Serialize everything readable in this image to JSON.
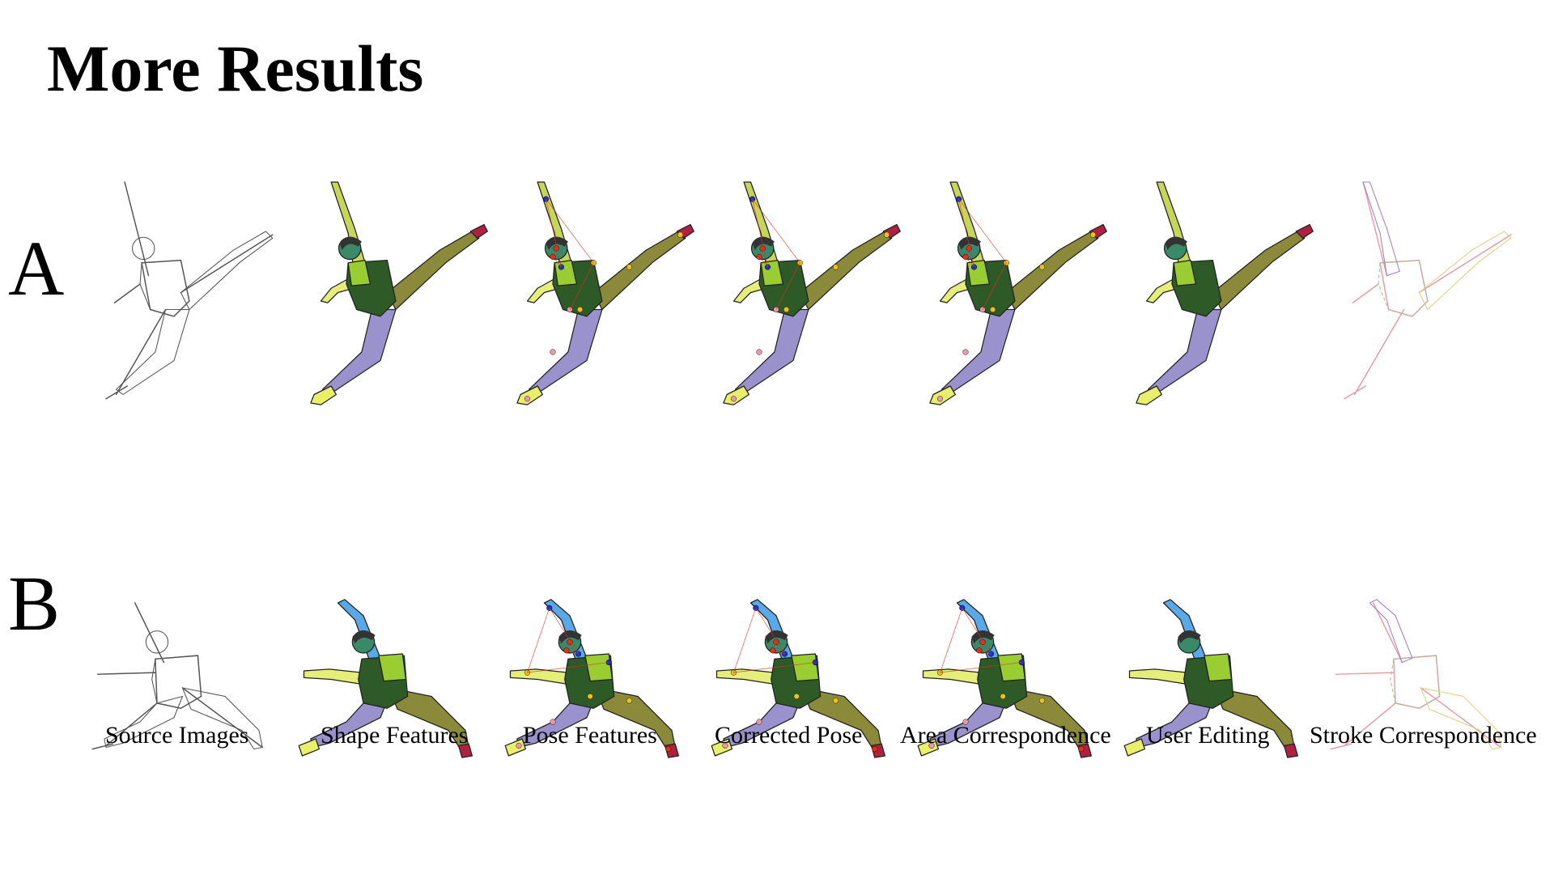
{
  "title": "More Results",
  "rows": [
    "A",
    "B"
  ],
  "captions": [
    "Source Images",
    "Shape Features",
    "Pose Features",
    "Corrected Pose",
    "Area Correspondence",
    "User Editing",
    "Stroke Correspondence"
  ],
  "panel_styles": [
    "sketch",
    "shape",
    "pose",
    "pose",
    "pose",
    "shape",
    "stroke"
  ],
  "colors": {
    "torso": "#2d5a27",
    "torso_light": "#9acd32",
    "head": "#3a8a6a",
    "hair": "#333333",
    "arm_up": "#c6d65a",
    "arm_up_b": "#5aa9e6",
    "arm_side": "#e6ee7a",
    "leg_front": "#9a92cc",
    "leg_back": "#8a8a3a",
    "shoe_front": "#e8ef6a",
    "shoe_back": "#b02040",
    "outline": "#222222",
    "sketch": "#555555",
    "keypoint_red": "#e03020",
    "keypoint_blue": "#2030c0",
    "keypoint_yellow": "#e8c020",
    "keypoint_pink": "#e89aa8"
  }
}
